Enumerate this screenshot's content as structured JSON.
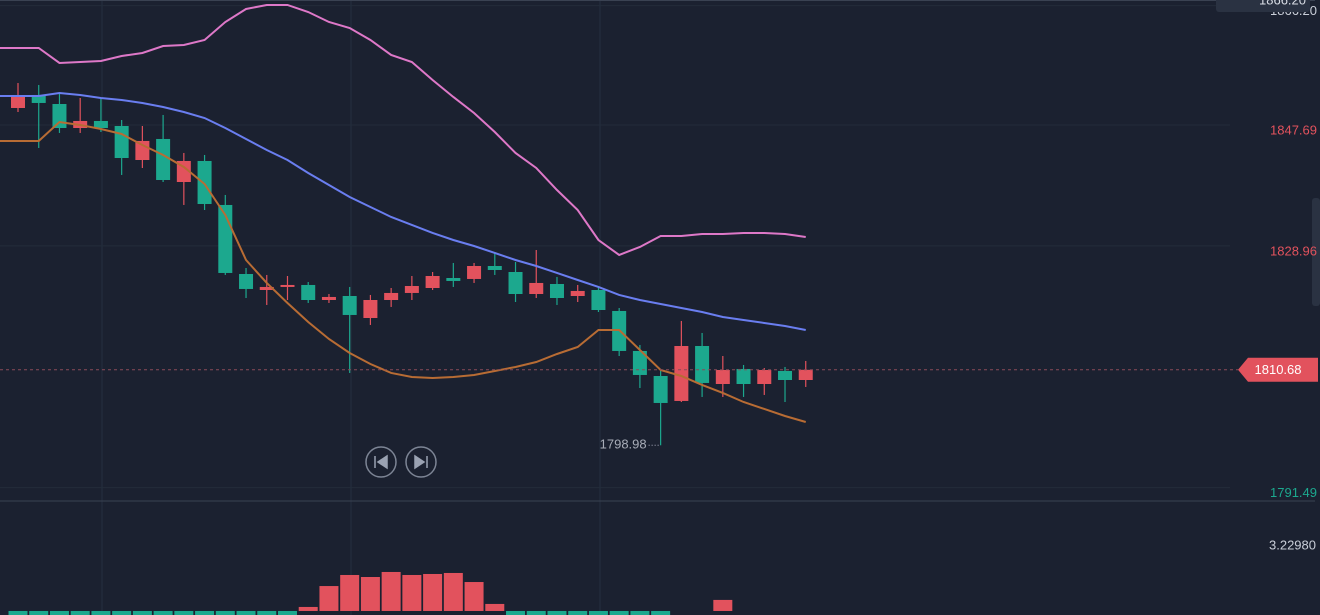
{
  "chart_data": {
    "type": "candlestick",
    "ylim": [
      1790.5,
      1868
    ],
    "yticks": [
      {
        "value": 1866.2,
        "label": "1866.20"
      },
      1847.69,
      1828.96,
      1791.49
    ],
    "ytick_colors": [
      "#c9ced8",
      "#e2525d",
      "#e2525d",
      "#1ca88e"
    ],
    "up_color": "#e2525d",
    "down_color": "#1ca88e",
    "open": [
      1851.26,
      1853.28,
      1851.88,
      1848.16,
      1849.25,
      1848.47,
      1843.2,
      1846.46,
      1839.79,
      1843.05,
      1836.23,
      1825.53,
      1823.05,
      1823.52,
      1823.83,
      1821.5,
      1822.12,
      1818.71,
      1821.5,
      1822.59,
      1823.36,
      1824.91,
      1824.76,
      1826.77,
      1825.84,
      1822.43,
      1823.98,
      1822.12,
      1823.05,
      1819.8,
      1813.6,
      1809.72,
      1805.85,
      1814.37,
      1808.48,
      1810.81,
      1808.48,
      1810.5,
      1809.1
    ],
    "high": [
      1855.13,
      1854.83,
      1853.59,
      1852.81,
      1852.81,
      1849.4,
      1848.47,
      1850.18,
      1844.29,
      1843.98,
      1837.78,
      1826.46,
      1825.38,
      1825.22,
      1824.29,
      1822.43,
      1823.52,
      1822.28,
      1823.36,
      1825.22,
      1825.84,
      1827.24,
      1827.24,
      1828.94,
      1827.39,
      1829.25,
      1825.07,
      1823.83,
      1823.52,
      1820.26,
      1814.53,
      1810.65,
      1818.25,
      1816.39,
      1812.82,
      1811.43,
      1810.96,
      1811.12,
      1812.05
    ],
    "low": [
      1850.64,
      1845.06,
      1847.39,
      1847.39,
      1847.54,
      1840.88,
      1841.96,
      1839.79,
      1836.23,
      1835.45,
      1825.38,
      1821.81,
      1820.73,
      1821.5,
      1821.04,
      1821.04,
      1810.19,
      1817.63,
      1820.42,
      1821.5,
      1823.05,
      1823.52,
      1824.14,
      1825.38,
      1821.19,
      1821.81,
      1820.73,
      1821.19,
      1819.64,
      1812.82,
      1807.86,
      1798.98,
      1805.69,
      1806.47,
      1806.47,
      1806.47,
      1806.78,
      1805.69,
      1808.02
    ],
    "close": [
      1852.97,
      1852.04,
      1848.16,
      1849.25,
      1848.16,
      1843.51,
      1846.15,
      1840.1,
      1843.05,
      1836.38,
      1825.69,
      1823.21,
      1823.52,
      1823.83,
      1821.5,
      1821.97,
      1819.18,
      1821.5,
      1822.59,
      1823.67,
      1825.22,
      1824.45,
      1826.77,
      1826.15,
      1822.43,
      1824.14,
      1821.81,
      1822.9,
      1819.95,
      1813.6,
      1809.88,
      1805.54,
      1814.37,
      1808.64,
      1810.65,
      1808.48,
      1810.65,
      1809.1,
      1810.68
    ],
    "lines": [
      {
        "color": "#de78c8",
        "values": [
          1860.56,
          1860.56,
          1858.24,
          1858.39,
          1858.55,
          1859.32,
          1859.79,
          1860.87,
          1861.03,
          1861.8,
          1864.59,
          1866.61,
          1867.23,
          1867.23,
          1866.14,
          1864.59,
          1863.66,
          1861.8,
          1859.48,
          1858.39,
          1855.6,
          1852.97,
          1850.49,
          1847.54,
          1844.29,
          1841.96,
          1838.55,
          1835.45,
          1830.8,
          1828.48,
          1829.72,
          1831.42,
          1831.42,
          1831.73,
          1831.73,
          1831.89,
          1831.89,
          1831.73,
          1831.27
        ]
      },
      {
        "color": "#6a7ef0",
        "values": [
          1853.12,
          1853.12,
          1853.59,
          1853.28,
          1852.81,
          1852.5,
          1852.04,
          1851.42,
          1850.64,
          1849.71,
          1848.16,
          1846.46,
          1844.75,
          1843.2,
          1841.19,
          1839.33,
          1837.47,
          1835.92,
          1834.37,
          1833.13,
          1831.89,
          1830.8,
          1829.87,
          1828.79,
          1827.7,
          1826.77,
          1825.69,
          1824.6,
          1823.52,
          1822.28,
          1821.5,
          1820.88,
          1820.26,
          1819.64,
          1818.87,
          1818.4,
          1817.94,
          1817.47,
          1816.85
        ]
      },
      {
        "color": "#b86c34",
        "values": [
          1846.15,
          1846.15,
          1849.09,
          1848.63,
          1848.01,
          1847.23,
          1845.53,
          1843.98,
          1842.12,
          1839.48,
          1834.68,
          1827.7,
          1824.14,
          1821.04,
          1818.09,
          1815.46,
          1813.29,
          1811.58,
          1810.19,
          1809.57,
          1809.41,
          1809.57,
          1809.88,
          1810.5,
          1811.12,
          1811.89,
          1813.13,
          1814.22,
          1816.85,
          1816.85,
          1813.75,
          1810.65,
          1809.72,
          1808.33,
          1807.09,
          1805.69,
          1804.61,
          1803.52,
          1802.59
        ]
      }
    ],
    "macd": {
      "type": "bar",
      "ylim": [
        -0.2,
        5.42
      ],
      "yticks": [
        {
          "value": 3.2298,
          "label": "3.22980"
        }
      ],
      "values": [
        -0.2,
        -0.2,
        -0.2,
        -0.2,
        -0.2,
        -0.2,
        -0.2,
        -0.2,
        -0.2,
        -0.2,
        -0.2,
        -0.2,
        -0.2,
        -0.2,
        0.2,
        1.24,
        1.79,
        1.69,
        1.94,
        1.79,
        1.84,
        1.89,
        1.44,
        0.35,
        -0.2,
        -0.2,
        -0.2,
        -0.2,
        -0.2,
        -0.2,
        -0.2,
        -0.2,
        0,
        0,
        0.55,
        0,
        0,
        0,
        0
      ]
    }
  }
}
